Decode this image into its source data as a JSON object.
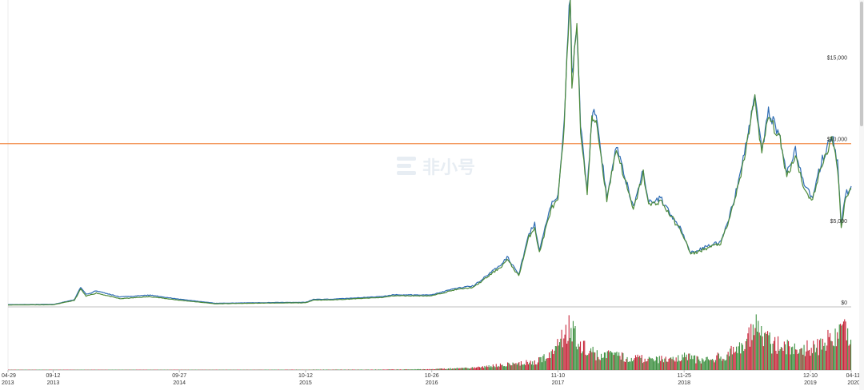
{
  "watermark": {
    "text": "非小号"
  },
  "colors": {
    "line_primary": "#2f6db5",
    "line_secondary": "#4c8a3a",
    "reference_line": "#f28c48",
    "volume_up": "#3f9142",
    "volume_down": "#c7263a",
    "grid": "#ececec",
    "axis": "#bfbfbf"
  },
  "chart_data": {
    "type": "line",
    "xlabel": "",
    "ylabel": "",
    "ylim": [
      0,
      18800
    ],
    "reference_line": 10000,
    "y_ticks": [
      "$15,000",
      "$10,000",
      "$5,000",
      "$0"
    ],
    "x_ticks": [
      {
        "date": "04-29",
        "year": "2013"
      },
      {
        "date": "09-12",
        "year": "2013"
      },
      {
        "date": "09-27",
        "year": "2014"
      },
      {
        "date": "10-12",
        "year": "2015"
      },
      {
        "date": "10-26",
        "year": "2016"
      },
      {
        "date": "11-10",
        "year": "2017"
      },
      {
        "date": "11-25",
        "year": "2018"
      },
      {
        "date": "12-10",
        "year": "2019"
      },
      {
        "date": "04-11",
        "year": "2020"
      }
    ],
    "x_range": [
      "2013-04-29",
      "2020-04-11"
    ],
    "series": [
      {
        "values": [
          [
            "2013-04-29",
            120
          ],
          [
            "2013-09-12",
            130
          ],
          [
            "2013-11-15",
            400
          ],
          [
            "2013-12-04",
            1100
          ],
          [
            "2013-12-20",
            650
          ],
          [
            "2014-01-20",
            850
          ],
          [
            "2014-04-01",
            500
          ],
          [
            "2014-07-01",
            630
          ],
          [
            "2014-09-27",
            410
          ],
          [
            "2015-01-14",
            190
          ],
          [
            "2015-06-01",
            230
          ],
          [
            "2015-10-12",
            250
          ],
          [
            "2015-11-05",
            420
          ],
          [
            "2016-01-01",
            430
          ],
          [
            "2016-06-01",
            580
          ],
          [
            "2016-07-01",
            680
          ],
          [
            "2016-10-26",
            680
          ],
          [
            "2017-01-04",
            1050
          ],
          [
            "2017-03-01",
            1200
          ],
          [
            "2017-05-25",
            2500
          ],
          [
            "2017-06-10",
            2900
          ],
          [
            "2017-07-15",
            1900
          ],
          [
            "2017-08-15",
            4300
          ],
          [
            "2017-09-01",
            4900
          ],
          [
            "2017-09-15",
            3300
          ],
          [
            "2017-10-20",
            6000
          ],
          [
            "2017-11-10",
            6500
          ],
          [
            "2017-11-29",
            11000
          ],
          [
            "2017-12-07",
            15000
          ],
          [
            "2017-12-17",
            19500
          ],
          [
            "2017-12-22",
            13800
          ],
          [
            "2018-01-06",
            17100
          ],
          [
            "2018-01-17",
            10900
          ],
          [
            "2018-02-06",
            6900
          ],
          [
            "2018-02-20",
            11400
          ],
          [
            "2018-03-05",
            11500
          ],
          [
            "2018-04-06",
            6600
          ],
          [
            "2018-05-05",
            9700
          ],
          [
            "2018-06-25",
            5900
          ],
          [
            "2018-07-25",
            8200
          ],
          [
            "2018-08-10",
            6200
          ],
          [
            "2018-09-15",
            6500
          ],
          [
            "2018-11-20",
            4500
          ],
          [
            "2018-12-15",
            3200
          ],
          [
            "2019-01-20",
            3500
          ],
          [
            "2019-03-15",
            3900
          ],
          [
            "2019-04-05",
            5000
          ],
          [
            "2019-05-15",
            8000
          ],
          [
            "2019-06-26",
            12800
          ],
          [
            "2019-07-17",
            9400
          ],
          [
            "2019-08-06",
            11700
          ],
          [
            "2019-09-10",
            10200
          ],
          [
            "2019-09-30",
            8000
          ],
          [
            "2019-10-26",
            9300
          ],
          [
            "2019-11-25",
            7000
          ],
          [
            "2019-12-17",
            6600
          ],
          [
            "2020-01-15",
            8800
          ],
          [
            "2020-02-13",
            10300
          ],
          [
            "2020-03-01",
            8600
          ],
          [
            "2020-03-12",
            4900
          ],
          [
            "2020-03-25",
            6700
          ],
          [
            "2020-04-11",
            7200
          ]
        ]
      },
      {
        "values": [
          [
            "2013-04-29",
            140
          ],
          [
            "2013-09-12",
            150
          ],
          [
            "2013-11-15",
            440
          ],
          [
            "2013-12-04",
            1220
          ],
          [
            "2013-12-20",
            760
          ],
          [
            "2014-01-20",
            980
          ],
          [
            "2014-04-01",
            610
          ],
          [
            "2014-07-01",
            720
          ],
          [
            "2014-09-27",
            470
          ],
          [
            "2015-01-14",
            220
          ],
          [
            "2015-06-01",
            260
          ],
          [
            "2015-10-12",
            280
          ],
          [
            "2015-11-05",
            460
          ],
          [
            "2016-01-01",
            470
          ],
          [
            "2016-06-01",
            640
          ],
          [
            "2016-07-01",
            740
          ],
          [
            "2016-10-26",
            740
          ],
          [
            "2017-01-04",
            1130
          ],
          [
            "2017-03-01",
            1290
          ],
          [
            "2017-05-25",
            2640
          ],
          [
            "2017-06-10",
            3050
          ],
          [
            "2017-07-15",
            2020
          ],
          [
            "2017-08-15",
            4470
          ],
          [
            "2017-09-01",
            5080
          ],
          [
            "2017-09-15",
            3450
          ],
          [
            "2017-10-20",
            6200
          ],
          [
            "2017-11-10",
            6700
          ],
          [
            "2017-11-29",
            11300
          ],
          [
            "2017-12-07",
            15400
          ],
          [
            "2017-12-17",
            19800
          ],
          [
            "2017-12-22",
            14200
          ],
          [
            "2018-01-06",
            17500
          ],
          [
            "2018-01-17",
            11200
          ],
          [
            "2018-02-06",
            7100
          ],
          [
            "2018-02-20",
            11700
          ],
          [
            "2018-03-05",
            11800
          ],
          [
            "2018-04-06",
            6800
          ],
          [
            "2018-05-05",
            9900
          ],
          [
            "2018-06-25",
            6050
          ],
          [
            "2018-07-25",
            8400
          ],
          [
            "2018-08-10",
            6350
          ],
          [
            "2018-09-15",
            6650
          ],
          [
            "2018-11-20",
            4600
          ],
          [
            "2018-12-15",
            3300
          ],
          [
            "2019-01-20",
            3600
          ],
          [
            "2019-03-15",
            4000
          ],
          [
            "2019-04-05",
            5150
          ],
          [
            "2019-05-15",
            8200
          ],
          [
            "2019-06-26",
            13100
          ],
          [
            "2019-07-17",
            9650
          ],
          [
            "2019-08-06",
            11950
          ],
          [
            "2019-09-10",
            10450
          ],
          [
            "2019-09-30",
            8200
          ],
          [
            "2019-10-26",
            9550
          ],
          [
            "2019-11-25",
            7200
          ],
          [
            "2019-12-17",
            6800
          ],
          [
            "2020-01-15",
            9050
          ],
          [
            "2020-02-13",
            10550
          ],
          [
            "2020-03-01",
            8850
          ],
          [
            "2020-03-12",
            5100
          ],
          [
            "2020-03-25",
            6900
          ],
          [
            "2020-04-11",
            7400
          ]
        ]
      }
    ],
    "volume_profile": [
      [
        "2013-04-29",
        0.0
      ],
      [
        "2016-06-01",
        0.01
      ],
      [
        "2016-10-26",
        0.02
      ],
      [
        "2017-03-01",
        0.05
      ],
      [
        "2017-06-01",
        0.12
      ],
      [
        "2017-09-01",
        0.18
      ],
      [
        "2017-11-01",
        0.42
      ],
      [
        "2017-12-10",
        0.95
      ],
      [
        "2018-01-20",
        0.55
      ],
      [
        "2018-03-01",
        0.35
      ],
      [
        "2018-06-01",
        0.28
      ],
      [
        "2018-09-01",
        0.22
      ],
      [
        "2018-11-20",
        0.3
      ],
      [
        "2019-01-20",
        0.2
      ],
      [
        "2019-04-05",
        0.35
      ],
      [
        "2019-05-15",
        0.55
      ],
      [
        "2019-06-26",
        1.0
      ],
      [
        "2019-08-10",
        0.6
      ],
      [
        "2019-11-01",
        0.45
      ],
      [
        "2020-01-15",
        0.55
      ],
      [
        "2020-03-12",
        0.92
      ],
      [
        "2020-04-11",
        0.75
      ]
    ]
  }
}
